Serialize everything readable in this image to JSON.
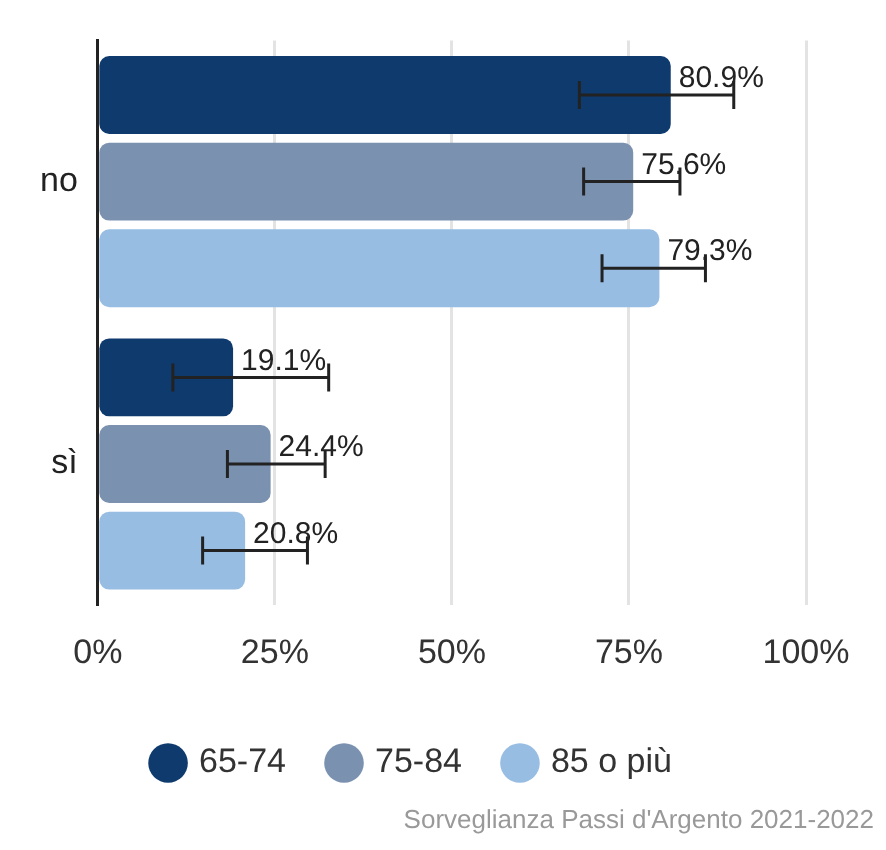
{
  "chart_data": {
    "type": "bar",
    "orientation": "horizontal",
    "categories": [
      "no",
      "sì"
    ],
    "series": [
      {
        "name": "65-74",
        "color": "#0e3a6e",
        "values": [
          80.9,
          19.1
        ],
        "errors": [
          [
            68.0,
            89.8
          ],
          [
            10.6,
            32.6
          ]
        ],
        "value_labels": [
          "80.9%",
          "19.1%"
        ]
      },
      {
        "name": "75-84",
        "color": "#7a91b0",
        "values": [
          75.6,
          24.4
        ],
        "errors": [
          [
            68.6,
            82.2
          ],
          [
            18.3,
            32.1
          ]
        ],
        "value_labels": [
          "75.6%",
          "24.4%"
        ]
      },
      {
        "name": "85 o più",
        "color": "#97bde3",
        "values": [
          79.3,
          20.8
        ],
        "errors": [
          [
            71.2,
            85.8
          ],
          [
            14.8,
            29.6
          ]
        ],
        "value_labels": [
          "79.3%",
          "20.8%"
        ]
      }
    ],
    "xlim": [
      0,
      100
    ],
    "xticks": [
      {
        "value": 0,
        "label": "0%"
      },
      {
        "value": 25,
        "label": "25%"
      },
      {
        "value": 50,
        "label": "50%"
      },
      {
        "value": 75,
        "label": "75%"
      },
      {
        "value": 100,
        "label": "100%"
      }
    ],
    "grid": "x",
    "legend": "bottom",
    "annotations": [
      "Sorveglianza Passi d'Argento 2021-2022"
    ]
  }
}
